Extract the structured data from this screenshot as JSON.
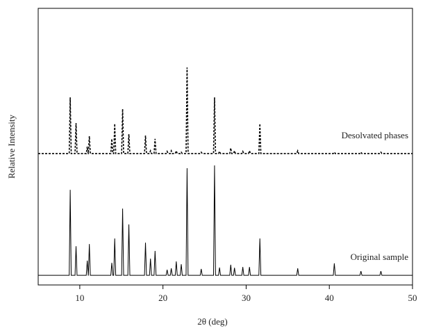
{
  "chart_data": {
    "type": "line",
    "xlabel": "2θ (deg)",
    "ylabel": "Relative Intensity",
    "xlim": [
      5,
      50
    ],
    "xticks": [
      10,
      20,
      30,
      40,
      50
    ],
    "ylim": [
      0,
      100
    ],
    "x": [
      5,
      8.73,
      8.85,
      8.97,
      9.43,
      9.55,
      9.67,
      10.78,
      10.9,
      11.02,
      11.03,
      11.15,
      11.27,
      13.73,
      13.85,
      13.97,
      14.08,
      14.2,
      14.32,
      15.03,
      15.15,
      15.27,
      15.78,
      15.9,
      16.02,
      17.78,
      17.9,
      18.02,
      18.38,
      18.5,
      18.62,
      18.93,
      19.05,
      19.17,
      20.38,
      20.5,
      20.62,
      20.88,
      21.0,
      21.12,
      21.48,
      21.6,
      21.72,
      22.08,
      22.2,
      22.32,
      22.78,
      22.9,
      23.02,
      24.48,
      24.6,
      24.72,
      26.08,
      26.2,
      26.32,
      26.68,
      26.8,
      26.92,
      28.03,
      28.15,
      28.27,
      28.48,
      28.6,
      28.72,
      29.48,
      29.6,
      29.72,
      30.28,
      30.4,
      30.52,
      31.53,
      31.65,
      31.77,
      36.08,
      36.2,
      36.32,
      40.48,
      40.6,
      40.72,
      43.68,
      43.8,
      43.92,
      46.08,
      46.2,
      46.32,
      50
    ],
    "series": [
      {
        "name": "Desolvated phases",
        "color": "#000000",
        "line_style": "dashed",
        "values": [
          47.5,
          47.5,
          67.8,
          47.5,
          47.5,
          58.5,
          47.5,
          47.5,
          50,
          47.5,
          47.5,
          53.8,
          47.5,
          47.5,
          52.8,
          47.5,
          47.5,
          58.3,
          47.5,
          47.5,
          63.6,
          47.5,
          47.5,
          54.5,
          47.5,
          47.5,
          54,
          47.5,
          47.5,
          48.5,
          47.5,
          47.5,
          52.8,
          47.5,
          47.5,
          48.3,
          47.5,
          47.5,
          48.5,
          47.5,
          47.5,
          48.5,
          47.5,
          47.5,
          48,
          47.5,
          47.5,
          78.6,
          47.5,
          47.5,
          48,
          47.5,
          47.5,
          67.8,
          47.5,
          47.5,
          48.3,
          47.5,
          47.5,
          49.5,
          47.5,
          47.5,
          48.5,
          47.5,
          47.5,
          48.3,
          47.5,
          47.5,
          48.5,
          47.5,
          47.5,
          58.3,
          47.5,
          47.5,
          48.5,
          47.5,
          47.5,
          48,
          47.5,
          47.5,
          48,
          47.5,
          47.5,
          48,
          47.5,
          47.5
        ]
      },
      {
        "name": "Original sample",
        "color": "#000000",
        "line_style": "solid",
        "values": [
          3.5,
          3.5,
          34.4,
          3.5,
          3.5,
          14,
          3.5,
          3.5,
          8.8,
          3.5,
          3.5,
          14.8,
          3.5,
          3.5,
          8,
          3.5,
          3.5,
          16.8,
          3.5,
          3.5,
          27.6,
          3.5,
          3.5,
          21.9,
          3.5,
          3.5,
          15.3,
          3.5,
          3.5,
          9.5,
          3.5,
          3.5,
          12.3,
          3.5,
          3.5,
          5.5,
          3.5,
          3.5,
          6,
          3.5,
          3.5,
          8.5,
          3.5,
          3.5,
          7.5,
          3.5,
          3.5,
          42.2,
          3.5,
          3.5,
          5.8,
          3.5,
          3.5,
          43.2,
          3.5,
          3.5,
          6.3,
          3.5,
          3.5,
          7.3,
          3.5,
          3.5,
          6.2,
          3.5,
          3.5,
          6.5,
          3.5,
          3.5,
          6.5,
          3.5,
          3.5,
          16.8,
          3.5,
          3.5,
          6,
          3.5,
          3.5,
          7.8,
          3.5,
          3.5,
          5,
          3.5,
          3.5,
          5,
          3.5,
          3.5
        ]
      }
    ]
  }
}
